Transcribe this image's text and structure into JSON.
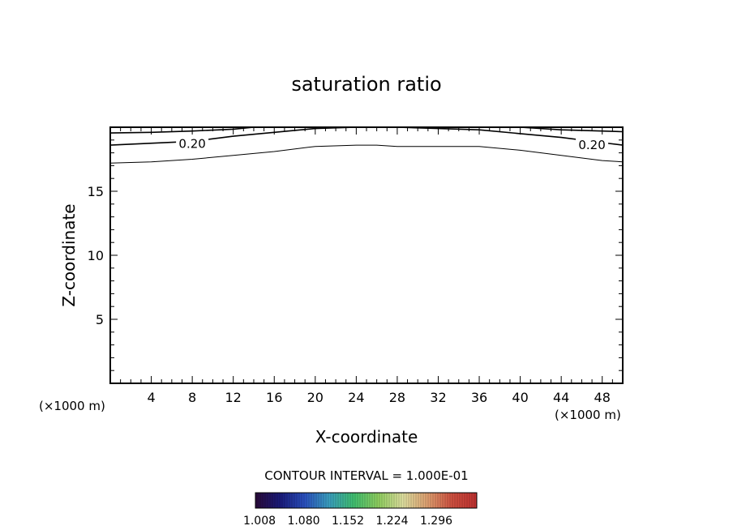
{
  "chart_data": {
    "type": "contour",
    "title": "saturation ratio",
    "xlabel": "X-coordinate",
    "ylabel": "Z-coordinate",
    "x_unit_left": "(×1000 m)",
    "x_unit_right": "(×1000 m)",
    "xlim": [
      0,
      50
    ],
    "ylim": [
      0,
      20
    ],
    "x_ticks": [
      4,
      8,
      12,
      16,
      20,
      24,
      28,
      32,
      36,
      40,
      44,
      48
    ],
    "x_tick_labels": [
      "4",
      "8",
      "12",
      "16",
      "20",
      "24",
      "28",
      "32",
      "36",
      "40",
      "44",
      "48"
    ],
    "y_ticks": [
      5,
      10,
      15
    ],
    "y_tick_labels": [
      "5",
      "10",
      "15"
    ],
    "contours": [
      {
        "level": 0.2,
        "label": "0.20",
        "label_at": [
          [
            8,
            18.7
          ],
          [
            47,
            18.6
          ]
        ],
        "points": [
          [
            0,
            18.6
          ],
          [
            8,
            18.9
          ],
          [
            12,
            19.3
          ],
          [
            16,
            19.6
          ],
          [
            20,
            19.9
          ],
          [
            24,
            20.0
          ],
          [
            28,
            20.0
          ],
          [
            32,
            19.9
          ],
          [
            36,
            19.8
          ],
          [
            40,
            19.5
          ],
          [
            44,
            19.2
          ],
          [
            48,
            18.8
          ],
          [
            50,
            18.6
          ]
        ]
      },
      {
        "level": 0.1,
        "label": "",
        "points": [
          [
            0,
            17.2
          ],
          [
            4,
            17.3
          ],
          [
            8,
            17.5
          ],
          [
            12,
            17.8
          ],
          [
            16,
            18.1
          ],
          [
            20,
            18.5
          ],
          [
            24,
            18.6
          ],
          [
            26,
            18.6
          ],
          [
            28,
            18.5
          ],
          [
            32,
            18.5
          ],
          [
            36,
            18.5
          ],
          [
            40,
            18.2
          ],
          [
            44,
            17.8
          ],
          [
            48,
            17.4
          ],
          [
            50,
            17.3
          ]
        ]
      },
      {
        "level": 0.3,
        "label": "",
        "points": [
          [
            0,
            19.55
          ],
          [
            4,
            19.6
          ],
          [
            8,
            19.7
          ],
          [
            12,
            19.85
          ],
          [
            14,
            20.0
          ]
        ]
      },
      {
        "level": 0.3,
        "label": "",
        "points": [
          [
            40,
            20.0
          ],
          [
            44,
            19.8
          ],
          [
            48,
            19.7
          ],
          [
            50,
            19.65
          ]
        ]
      }
    ],
    "contour_interval_text": "CONTOUR INTERVAL = 1.000E-01",
    "colorbar": {
      "tick_labels": [
        "1.008",
        "1.080",
        "1.152",
        "1.224",
        "1.296"
      ],
      "colors": [
        "#2a0a3a",
        "#1a1a7a",
        "#2a50c0",
        "#3aa0c0",
        "#40c070",
        "#90d060",
        "#e0e0a0",
        "#e0a070",
        "#d05040",
        "#c03030"
      ]
    }
  }
}
